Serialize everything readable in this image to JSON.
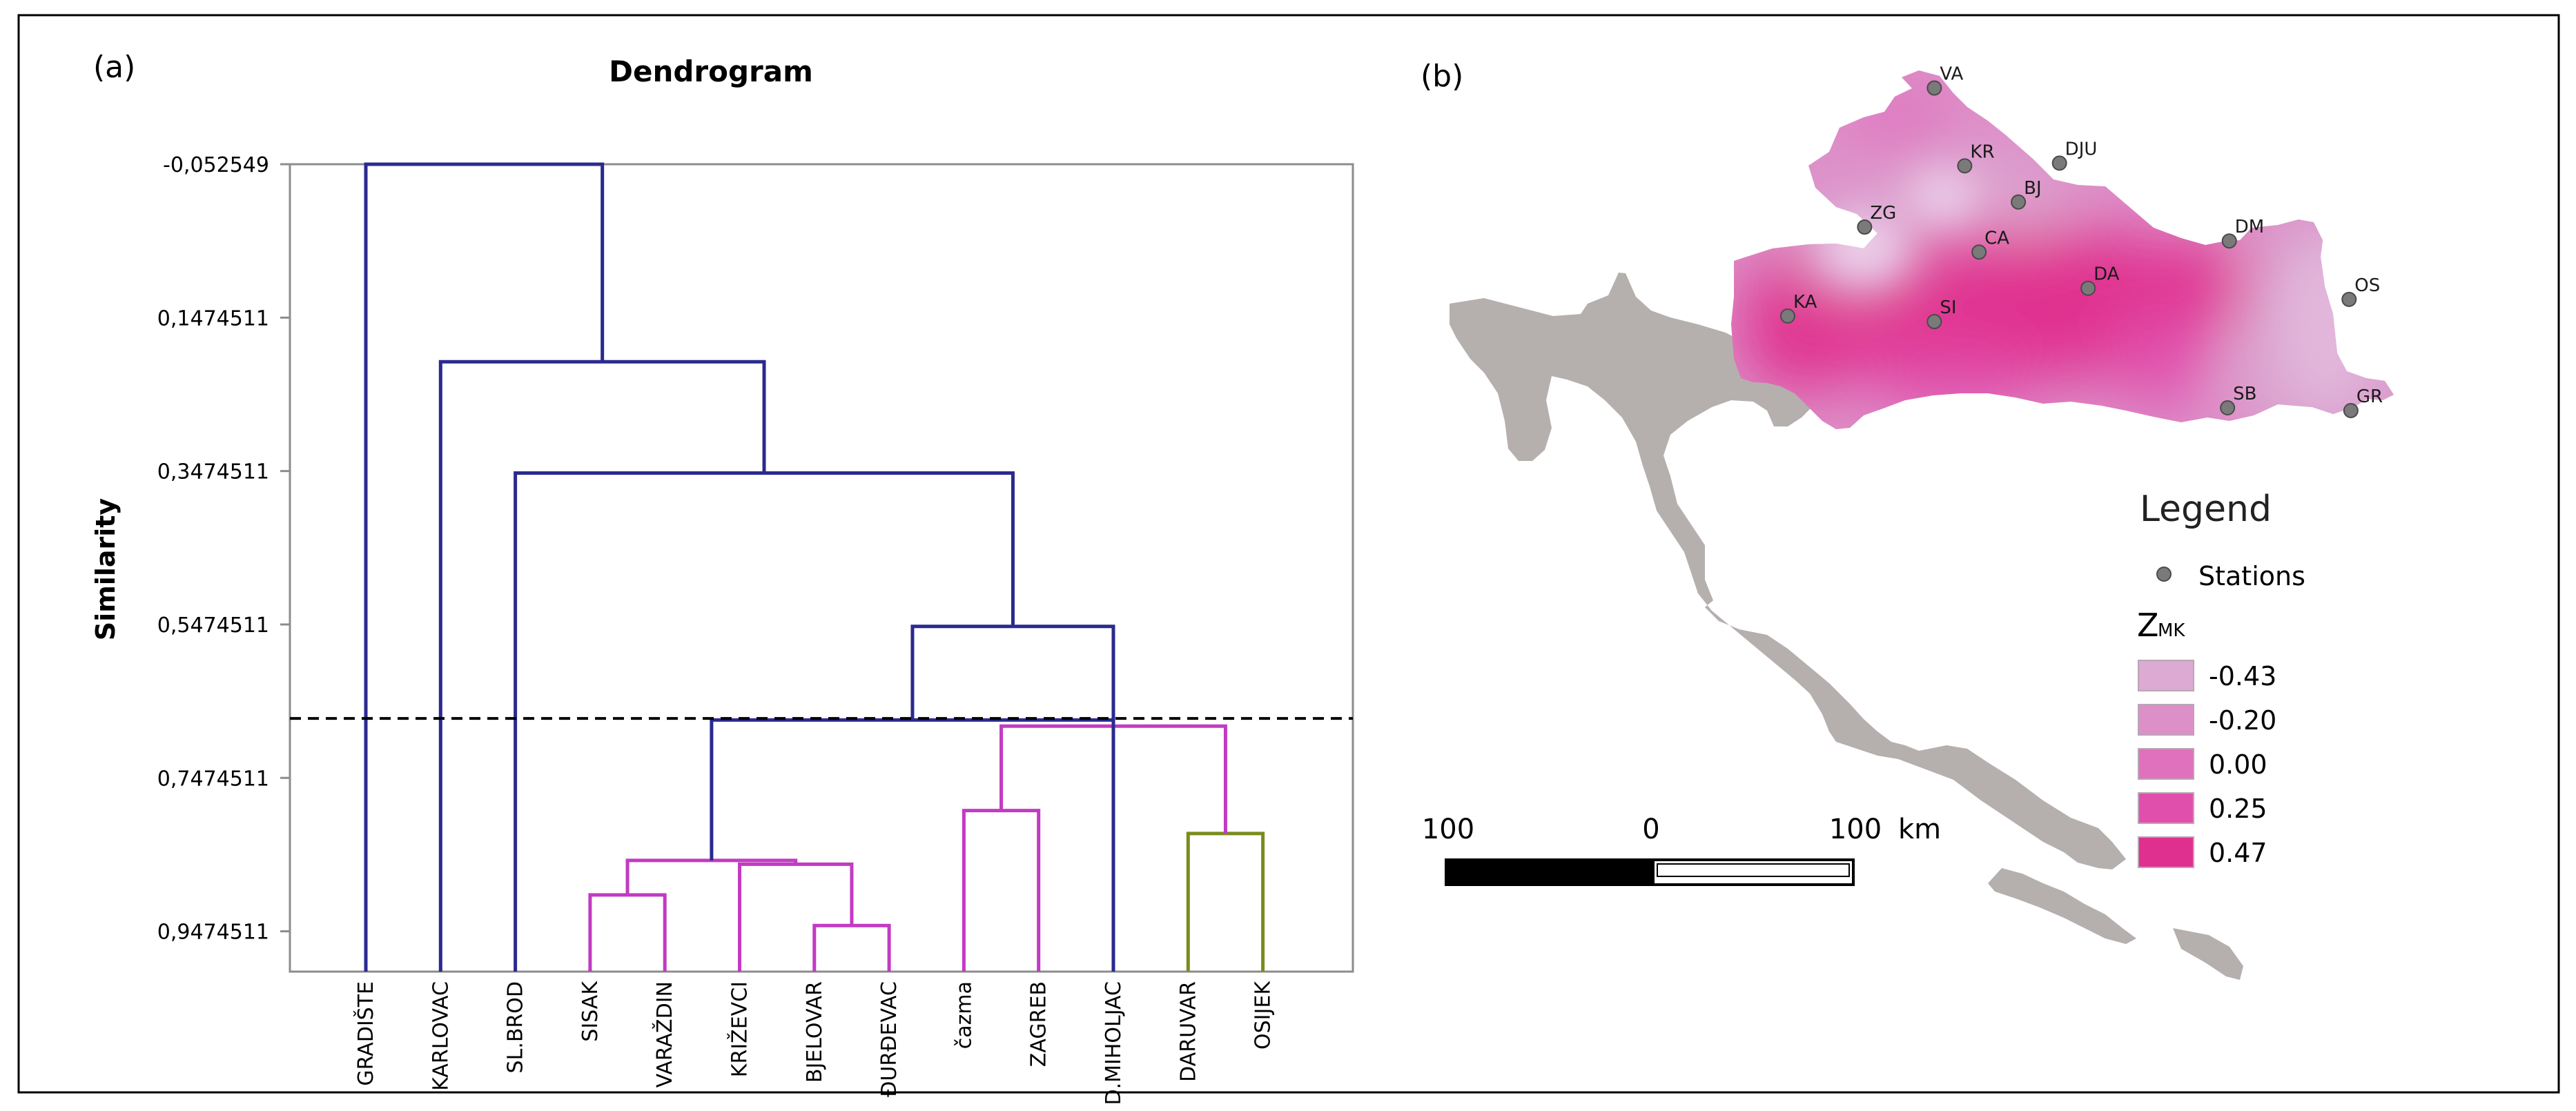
{
  "panel_a": {
    "label": "(a)",
    "title": "Dendrogram",
    "ylabel": "Similarity"
  },
  "panel_b": {
    "label": "(b)",
    "legend": {
      "title": "Legend",
      "stations_label": "Stations",
      "zmk_main": "Z",
      "zmk_sub": "MK",
      "classes": [
        {
          "label": "-0.43",
          "color": "#dcaad3"
        },
        {
          "label": "-0.20",
          "color": "#dd8fc8"
        },
        {
          "label": "0.00",
          "color": "#e071bd"
        },
        {
          "label": "0.25",
          "color": "#e14fad"
        },
        {
          "label": "0.47",
          "color": "#e0308f"
        }
      ]
    },
    "scalebar": {
      "left": "100",
      "mid": "0",
      "right": "100",
      "unit": "km"
    },
    "stations": [
      {
        "code": "VA",
        "lon": 16.37,
        "lat": 46.31
      },
      {
        "code": "KR",
        "lon": 16.54,
        "lat": 46.03
      },
      {
        "code": "DJU",
        "lon": 17.07,
        "lat": 46.04
      },
      {
        "code": "BJ",
        "lon": 16.84,
        "lat": 45.9
      },
      {
        "code": "ZG",
        "lon": 15.98,
        "lat": 45.81
      },
      {
        "code": "CA",
        "lon": 16.62,
        "lat": 45.72
      },
      {
        "code": "DM",
        "lon": 18.02,
        "lat": 45.76
      },
      {
        "code": "KA",
        "lon": 15.55,
        "lat": 45.49
      },
      {
        "code": "SI",
        "lon": 16.37,
        "lat": 45.47
      },
      {
        "code": "DA",
        "lon": 17.23,
        "lat": 45.59
      },
      {
        "code": "OS",
        "lon": 18.69,
        "lat": 45.55
      },
      {
        "code": "SB",
        "lon": 18.01,
        "lat": 45.16
      },
      {
        "code": "GR",
        "lon": 18.7,
        "lat": 45.15
      }
    ]
  },
  "chart_data": {
    "type": "dendrogram",
    "title": "Dendrogram",
    "ylabel": "Similarity",
    "xlabel": "",
    "yticks": [
      "-0,052549",
      "0,1474511",
      "0,3474511",
      "0,5474511",
      "0,7474511",
      "0,9474511"
    ],
    "ylim": [
      -0.052549,
      1.0
    ],
    "cut_line": 0.67,
    "leaves": [
      "GRADIŠTE",
      "KARLOVAC",
      "SL.BROD",
      "SISAK",
      "VARAŽDIN",
      "KRIŽEVCI",
      "BJELOVAR",
      "ĐURĐEVAC",
      "čazma",
      "ZAGREB",
      "D.MIHOLJAC",
      "DARUVAR",
      "OSIJEK"
    ],
    "merges": [
      {
        "left": 6,
        "right": 7,
        "height": 0.94,
        "color": "#c23bc2"
      },
      {
        "left": 3,
        "right": 4,
        "height": 0.9,
        "color": "#c23bc2"
      },
      {
        "left": 5,
        "right": 13,
        "height": 0.86,
        "color": "#c23bc2"
      },
      {
        "left": 11,
        "right": 12,
        "height": 0.82,
        "color": "#7a8c1e"
      },
      {
        "left": 8,
        "right": 9,
        "height": 0.79,
        "color": "#c23bc2"
      },
      {
        "left": 14,
        "right": 15,
        "height": 0.855,
        "color": "#c23bc2"
      },
      {
        "left": 17,
        "right": 16,
        "height": 0.68,
        "color": "#c23bc2"
      },
      {
        "left": 10,
        "right": 18,
        "height": 0.672,
        "color": "#2a2a8f"
      },
      {
        "left": 19,
        "right": 20,
        "height": 0.55,
        "color": "#2a2a8f"
      },
      {
        "left": 2,
        "right": 21,
        "height": 0.35,
        "color": "#2a2a8f"
      },
      {
        "left": 1,
        "right": 22,
        "height": 0.205,
        "color": "#2a2a8f"
      },
      {
        "left": 0,
        "right": 23,
        "height": -0.052549,
        "color": "#2a2a8f"
      }
    ]
  }
}
